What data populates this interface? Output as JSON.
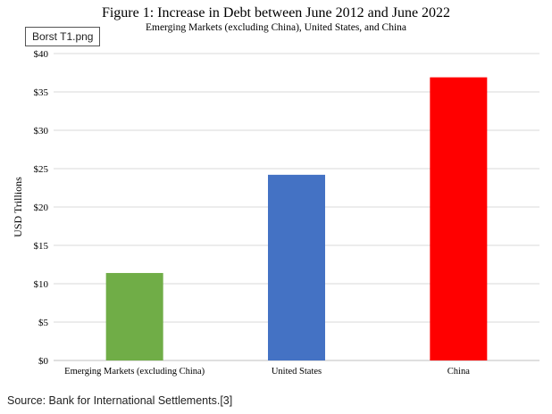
{
  "file_tag": "Borst T1.png",
  "source": "Source: Bank for International Settlements.[3]",
  "chart_data": {
    "type": "bar",
    "title": "Figure 1:  Increase in Debt between June 2012 and June 2022",
    "subtitle": "Emerging Markets (excluding China), United States, and China",
    "xlabel": "",
    "ylabel": "USD Trillions",
    "ylim": [
      0,
      40
    ],
    "yticks": [
      "$0",
      "$5",
      "$10",
      "$15",
      "$20",
      "$25",
      "$30",
      "$35",
      "$40"
    ],
    "categories": [
      "Emerging Markets (excluding China)",
      "United States",
      "China"
    ],
    "values": [
      11.4,
      24.2,
      36.9
    ],
    "colors": [
      "#70ad47",
      "#4472c4",
      "#ff0000"
    ],
    "grid": true,
    "legend": "none"
  }
}
